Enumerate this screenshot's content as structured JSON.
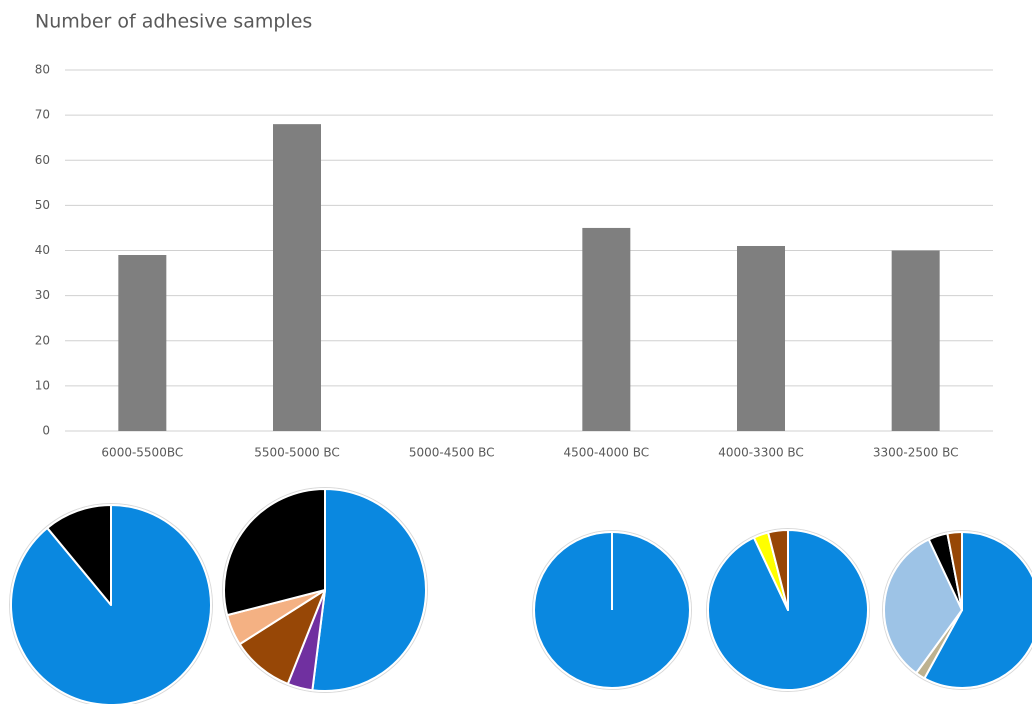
{
  "chart_data": [
    {
      "type": "bar",
      "title": "Number of adhesive samples",
      "categories": [
        "6000-5500BC",
        "5500-5000 BC",
        "5000-4500 BC",
        "4500-4000 BC",
        "4000-3300 BC",
        "3300-2500 BC"
      ],
      "values": [
        39,
        68,
        null,
        45,
        41,
        40
      ],
      "color": "#7f7f7f",
      "ylim": [
        0,
        80
      ],
      "yticks": [
        0,
        10,
        20,
        30,
        40,
        50,
        60,
        70,
        80
      ],
      "grid": true
    },
    {
      "type": "pie",
      "values": [
        89,
        11
      ],
      "colors": [
        "#0a88e0",
        "#000000"
      ]
    },
    {
      "type": "pie",
      "values": [
        52,
        4,
        10,
        5,
        29
      ],
      "colors": [
        "#0a88e0",
        "#7030a0",
        "#974706",
        "#f4b183",
        "#000000"
      ]
    },
    {
      "type": "pie",
      "values": [
        100
      ],
      "colors": [
        "#0a88e0"
      ]
    },
    {
      "type": "pie",
      "values": [
        93,
        3,
        4
      ],
      "colors": [
        "#0a88e0",
        "#ffff00",
        "#974706"
      ]
    },
    {
      "type": "pie",
      "values": [
        58,
        2,
        33,
        4,
        3
      ],
      "colors": [
        "#0a88e0",
        "#bdb290",
        "#9dc3e6",
        "#000000",
        "#974706"
      ]
    }
  ]
}
